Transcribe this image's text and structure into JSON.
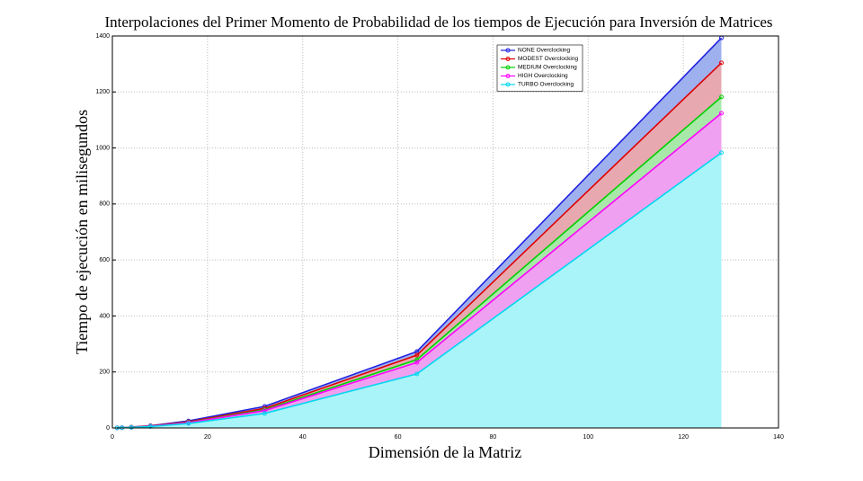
{
  "chart_data": {
    "type": "area-line",
    "title": "Interpolaciones del Primer Momento de Probabilidad de los tiempos de Ejecución para Inversión de Matrices",
    "x_label": "Dimensión de la Matriz",
    "y_label": "Tiempo de ejecución en milisegundos",
    "x": [
      1,
      2,
      4,
      8,
      16,
      32,
      64,
      128
    ],
    "series": [
      {
        "name": "NONE Overclocking",
        "color": "#2020e0",
        "fill": "#9fb0ee",
        "values": [
          0.5,
          1,
          3,
          8,
          25,
          77,
          273,
          1393
        ]
      },
      {
        "name": "MODEST Overclocking",
        "color": "#e00000",
        "fill": "#e8a8b0",
        "values": [
          0.5,
          1,
          3,
          7,
          22,
          70,
          260,
          1304
        ]
      },
      {
        "name": "MEDIUM Overclocking",
        "color": "#00d000",
        "fill": "#a8e8a8",
        "values": [
          0.4,
          1,
          2,
          6,
          20,
          65,
          244,
          1182
        ]
      },
      {
        "name": "HIGH Overclocking",
        "color": "#ff00ff",
        "fill": "#f0a0f0",
        "values": [
          0.4,
          1,
          2,
          6,
          19,
          62,
          234,
          1124
        ]
      },
      {
        "name": "TURBO Overclocking",
        "color": "#00d8f0",
        "fill": "#a8f4f8",
        "values": [
          0.3,
          1,
          2,
          5,
          16,
          52,
          193,
          983
        ]
      }
    ],
    "xlim": [
      0,
      140
    ],
    "xticks": [
      0,
      20,
      40,
      60,
      80,
      100,
      120,
      140
    ],
    "ylim": [
      0,
      1400
    ],
    "yticks": [
      0,
      200,
      400,
      600,
      800,
      1000,
      1200,
      1400
    ],
    "grid": true,
    "legend": "upper center"
  }
}
